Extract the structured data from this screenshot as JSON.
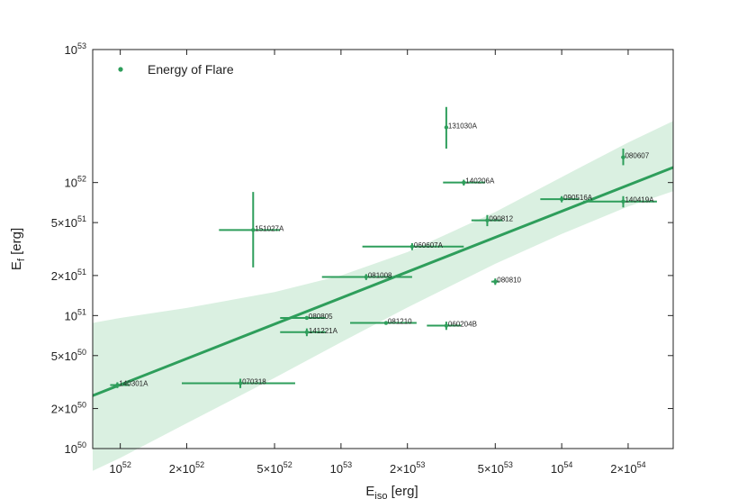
{
  "chart_data": {
    "type": "scatter",
    "title": "",
    "xlabel": "E_iso [erg]",
    "ylabel": "E_f [erg]",
    "xscale": "log",
    "yscale": "log",
    "xlim": [
      7.5e+51,
      3.2e+54
    ],
    "ylim": [
      1e+50,
      1e+53
    ],
    "x_ticks": [
      {
        "value": 1e+52,
        "mant": "",
        "exp": "52"
      },
      {
        "value": 2e+52,
        "mant": "2×",
        "exp": "52"
      },
      {
        "value": 5e+52,
        "mant": "5×",
        "exp": "52"
      },
      {
        "value": 1e+53,
        "mant": "",
        "exp": "53"
      },
      {
        "value": 2e+53,
        "mant": "2×",
        "exp": "53"
      },
      {
        "value": 5e+53,
        "mant": "5×",
        "exp": "53"
      },
      {
        "value": 1e+54,
        "mant": "",
        "exp": "54"
      },
      {
        "value": 2e+54,
        "mant": "2×",
        "exp": "54"
      }
    ],
    "y_ticks": [
      {
        "value": 1e+50,
        "mant": "",
        "exp": "50"
      },
      {
        "value": 2e+50,
        "mant": "2×",
        "exp": "50"
      },
      {
        "value": 5e+50,
        "mant": "5×",
        "exp": "50"
      },
      {
        "value": 1e+51,
        "mant": "",
        "exp": "51"
      },
      {
        "value": 2e+51,
        "mant": "2×",
        "exp": "51"
      },
      {
        "value": 5e+51,
        "mant": "5×",
        "exp": "51"
      },
      {
        "value": 1e+52,
        "mant": "",
        "exp": "52"
      },
      {
        "value": 1e+53,
        "mant": "",
        "exp": "53"
      }
    ],
    "legend": {
      "label": "Energy of Flare",
      "position": "top-left"
    },
    "color": "#2e9e5b",
    "band_color": "#cdebd7",
    "fit_line": {
      "x": [
        7.5e+51,
        3.2e+54
      ],
      "y": [
        2.5e+50,
        1.3e+52
      ]
    },
    "confidence_band": {
      "x": [
        7.5e+51,
        1e+52,
        2e+52,
        5e+52,
        1e+53,
        2e+53,
        5e+53,
        1e+54,
        2e+54,
        3.2e+54
      ],
      "upper": [
        8.8e+50,
        9.6e+50,
        1.14e+51,
        1.5e+51,
        2e+51,
        3e+51,
        6e+51,
        1.1e+52,
        2e+52,
        2.9e+52
      ],
      "lower": [
        6.8e+49,
        8.5e+49,
        1.55e+50,
        3.4e+50,
        6.3e+50,
        1.15e+51,
        2.45e+51,
        4.1e+51,
        6.6e+51,
        8.6e+51
      ]
    },
    "points": [
      {
        "label": "131030A",
        "x": 3e+53,
        "y": 2.6e+52,
        "xerr": [
          2.96e+53,
          3.04e+53
        ],
        "yerr": [
          1.8e+52,
          3.7e+52
        ]
      },
      {
        "label": "080607",
        "x": 1.9e+54,
        "y": 1.55e+52,
        "xerr": [
          1.86e+54,
          1.94e+54
        ],
        "yerr": [
          1.35e+52,
          1.8e+52
        ]
      },
      {
        "label": "140206A",
        "x": 3.6e+53,
        "y": 1e+52,
        "xerr": [
          2.9e+53,
          4.5e+53
        ],
        "yerr": [
          9.5e+51,
          1.05e+52
        ]
      },
      {
        "label": "090516A",
        "x": 1e+54,
        "y": 7.5e+51,
        "xerr": [
          8e+53,
          1.2e+54
        ],
        "yerr": [
          7.1e+51,
          7.9e+51
        ]
      },
      {
        "label": "140419A",
        "x": 1.9e+54,
        "y": 7.2e+51,
        "xerr": [
          1.25e+54,
          2.7e+54
        ],
        "yerr": [
          6.5e+51,
          7.9e+51
        ]
      },
      {
        "label": "090812",
        "x": 4.6e+53,
        "y": 5.2e+51,
        "xerr": [
          3.9e+53,
          5.4e+53
        ],
        "yerr": [
          4.7e+51,
          5.7e+51
        ]
      },
      {
        "label": "151027A",
        "x": 4e+52,
        "y": 4.4e+51,
        "xerr": [
          2.8e+52,
          5.3e+52
        ],
        "yerr": [
          2.3e+51,
          8.5e+51
        ]
      },
      {
        "label": "060607A",
        "x": 2.1e+53,
        "y": 3.3e+51,
        "xerr": [
          1.25e+53,
          3.6e+53
        ],
        "yerr": [
          3.1e+51,
          3.5e+51
        ]
      },
      {
        "label": "081008",
        "x": 1.3e+53,
        "y": 1.95e+51,
        "xerr": [
          8.2e+52,
          2.1e+53
        ],
        "yerr": [
          1.85e+51,
          2.05e+51
        ]
      },
      {
        "label": "080810",
        "x": 5e+53,
        "y": 1.8e+51,
        "xerr": [
          4.8e+53,
          5.2e+53
        ],
        "yerr": [
          1.7e+51,
          1.9e+51
        ]
      },
      {
        "label": "080805",
        "x": 7e+52,
        "y": 9.6e+50,
        "xerr": [
          5.3e+52,
          8.5e+52
        ],
        "yerr": [
          9.3e+50,
          9.9e+50
        ]
      },
      {
        "label": "081210",
        "x": 1.6e+53,
        "y": 8.8e+50,
        "xerr": [
          1.1e+53,
          2.2e+53
        ],
        "yerr": [
          8.6e+50,
          9e+50
        ]
      },
      {
        "label": "060204B",
        "x": 3e+53,
        "y": 8.4e+50,
        "xerr": [
          2.45e+53,
          3.5e+53
        ],
        "yerr": [
          7.8e+50,
          9e+50
        ]
      },
      {
        "label": "141221A",
        "x": 7e+52,
        "y": 7.5e+50,
        "xerr": [
          5.3e+52,
          8.5e+52
        ],
        "yerr": [
          7e+50,
          8e+50
        ]
      },
      {
        "label": "140301A",
        "x": 9.7e+51,
        "y": 3e+50,
        "xerr": [
          9e+51,
          1.1e+52
        ],
        "yerr": [
          2.85e+50,
          3.15e+50
        ]
      },
      {
        "label": "070318",
        "x": 3.5e+52,
        "y": 3.1e+50,
        "xerr": [
          1.9e+52,
          6.2e+52
        ],
        "yerr": [
          2.85e+50,
          3.35e+50
        ]
      }
    ]
  }
}
